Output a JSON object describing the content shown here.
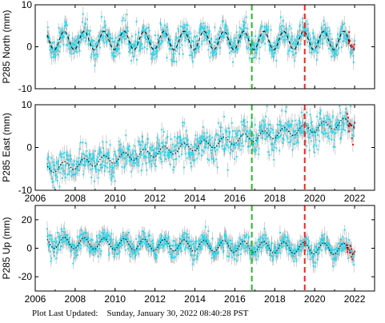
{
  "colors": {
    "errorbar": "#b3b3b3",
    "points": "#00e5ff",
    "model": "#000000",
    "recent": "#ff0000",
    "event_green": "#22bb22",
    "event_red": "#ee2222"
  },
  "footer": {
    "label": "Plot Last Updated:",
    "timestamp": "Sunday, January 30, 2022 08:40:28 PST"
  },
  "chart_data": [
    {
      "type": "scatter",
      "ylabel": "P285 North (mm)",
      "xlim": [
        2006,
        2023
      ],
      "ylim": [
        -10,
        10
      ],
      "x_ticks": [
        2006,
        2008,
        2010,
        2012,
        2014,
        2016,
        2018,
        2020,
        2022
      ],
      "y_ticks": [
        -10,
        0,
        10
      ],
      "show_x_labels": false,
      "series_start": 2006.6,
      "series_end": 2022.0,
      "trend_intercept": 1.5,
      "trend_slope_per_year": 0.0,
      "seasonal_amplitude": 2.2,
      "noise_sd": 1.6,
      "events": [
        {
          "x": 2016.85,
          "color": "green"
        },
        {
          "x": 2019.5,
          "color": "red"
        }
      ]
    },
    {
      "type": "scatter",
      "ylabel": "P285 East (mm)",
      "xlim": [
        2006,
        2023
      ],
      "ylim": [
        -10,
        10
      ],
      "x_ticks": [
        2006,
        2008,
        2010,
        2012,
        2014,
        2016,
        2018,
        2020,
        2022
      ],
      "y_ticks": [
        -10,
        0,
        10
      ],
      "show_x_labels": true,
      "series_start": 2006.6,
      "series_end": 2022.0,
      "trend_intercept": -5.0,
      "trend_slope_per_year": 0.72,
      "seasonal_amplitude": 1.1,
      "noise_sd": 1.9,
      "events": [
        {
          "x": 2016.85,
          "color": "green"
        },
        {
          "x": 2019.5,
          "color": "red"
        }
      ]
    },
    {
      "type": "scatter",
      "ylabel": "P285 Up (mm)",
      "xlim": [
        2006,
        2023
      ],
      "ylim": [
        -30,
        30
      ],
      "x_ticks": [
        2006,
        2008,
        2010,
        2012,
        2014,
        2016,
        2018,
        2020,
        2022
      ],
      "y_ticks": [
        -20,
        0,
        20
      ],
      "show_x_labels": true,
      "series_start": 2006.6,
      "series_end": 2022.0,
      "trend_intercept": 4.0,
      "trend_slope_per_year": -0.3,
      "seasonal_amplitude": 4.0,
      "noise_sd": 3.5,
      "events": [
        {
          "x": 2016.85,
          "color": "green"
        },
        {
          "x": 2019.5,
          "color": "red"
        }
      ]
    }
  ]
}
